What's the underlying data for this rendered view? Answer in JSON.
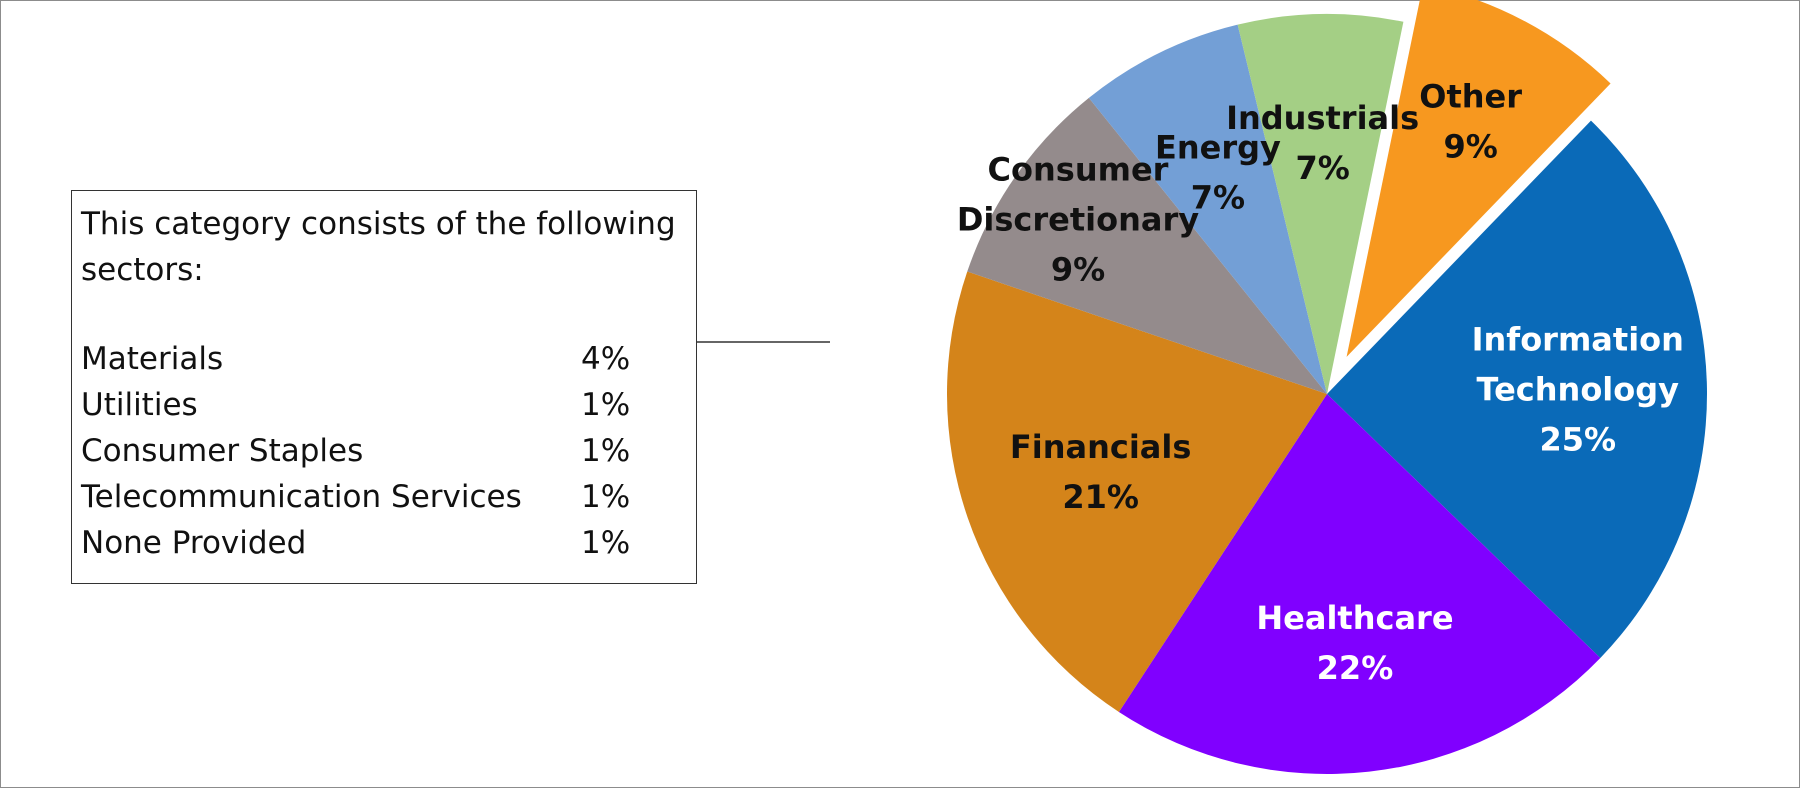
{
  "chart_data": {
    "type": "pie",
    "slices": [
      {
        "name": "Information Technology",
        "label_lines": [
          "Information",
          "Technology"
        ],
        "value": 25,
        "pct": "25%",
        "color": "#0a6ab8",
        "text_color": "#ffffff"
      },
      {
        "name": "Healthcare",
        "label_lines": [
          "Healthcare"
        ],
        "value": 22,
        "pct": "22%",
        "color": "#8000ff",
        "text_color": "#ffffff"
      },
      {
        "name": "Financials",
        "label_lines": [
          "Financials"
        ],
        "value": 21,
        "pct": "21%",
        "color": "#d4841a",
        "text_color": "#111111"
      },
      {
        "name": "Consumer Discretionary",
        "label_lines": [
          "Consumer",
          "Discretionary"
        ],
        "value": 9,
        "pct": "9%",
        "color": "#948b8c",
        "text_color": "#111111"
      },
      {
        "name": "Energy",
        "label_lines": [
          "Energy"
        ],
        "value": 7,
        "pct": "7%",
        "color": "#739fd6",
        "text_color": "#111111"
      },
      {
        "name": "Industrials",
        "label_lines": [
          "Industrials"
        ],
        "value": 7,
        "pct": "7%",
        "color": "#a4cf85",
        "text_color": "#111111"
      },
      {
        "name": "Other",
        "label_lines": [
          "Other"
        ],
        "value": 9,
        "pct": "9%",
        "color": "#f7981f",
        "text_color": "#111111",
        "exploded": true
      }
    ],
    "legend": "none",
    "callout": {
      "intro": "This category consists of the following sectors:",
      "rows": [
        {
          "label": "Materials",
          "value": "4%"
        },
        {
          "label": "Utilities",
          "value": "1%"
        },
        {
          "label": "Consumer Staples",
          "value": "1%"
        },
        {
          "label": "Telecommunication Services",
          "value": "1%"
        },
        {
          "label": "None Provided",
          "value": "1%"
        }
      ]
    }
  }
}
